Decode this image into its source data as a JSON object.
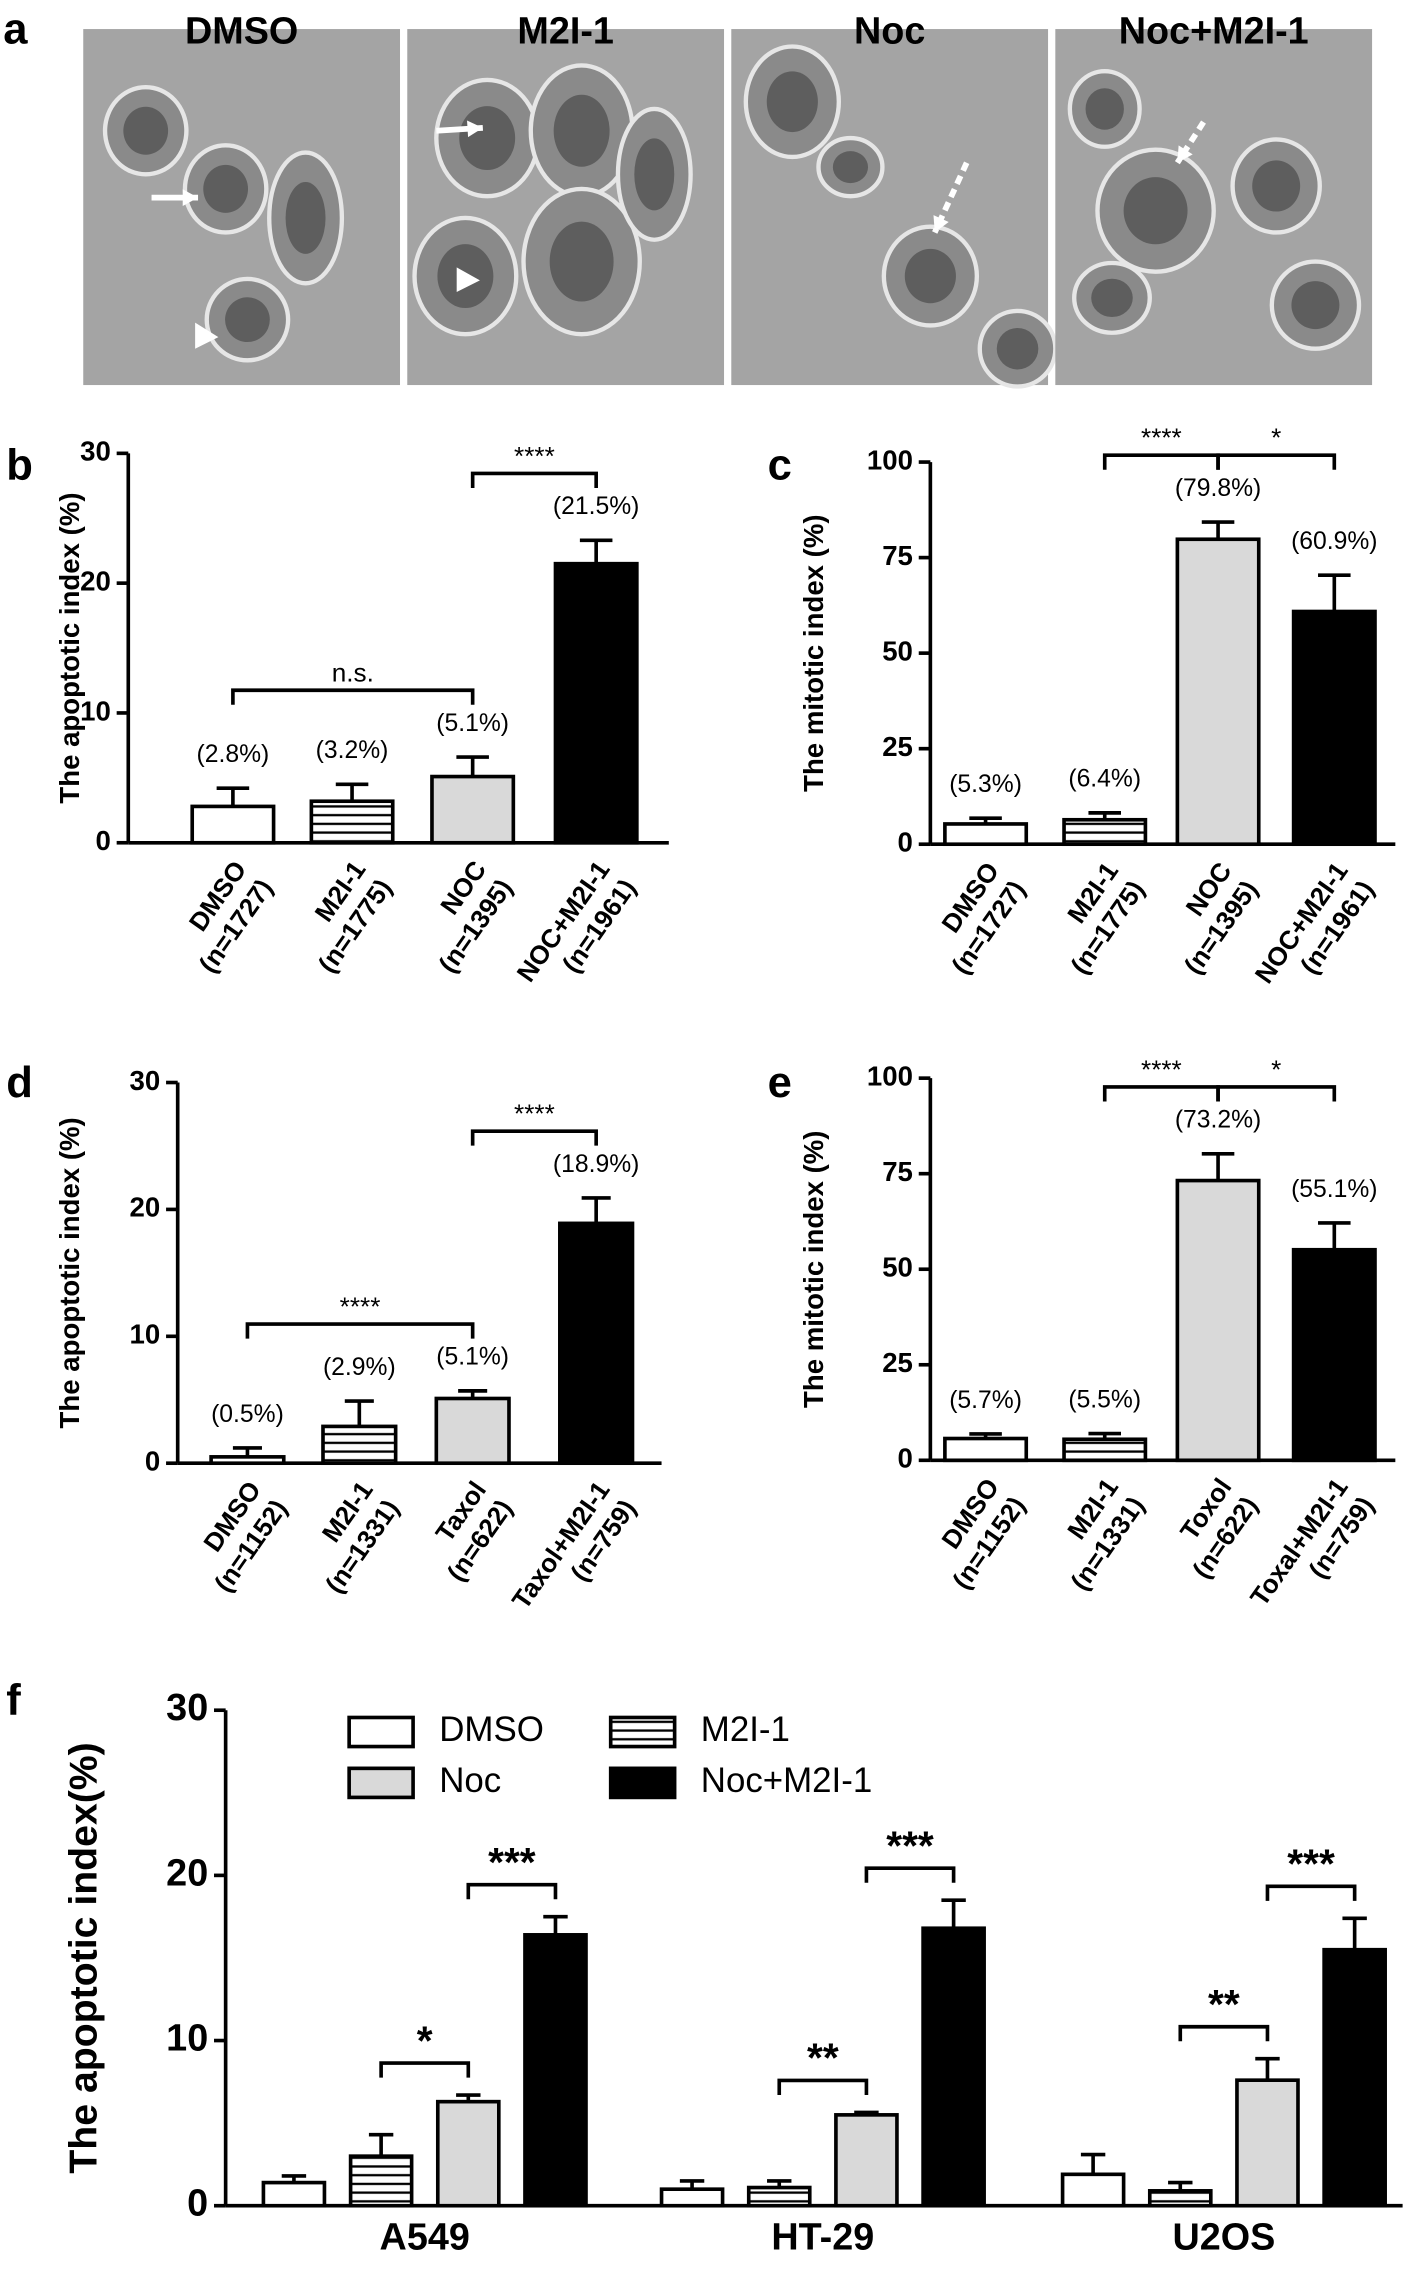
{
  "panel_a": {
    "label": "a",
    "titles": [
      "DMSO",
      "M2I-1",
      "Noc",
      "Noc+M2I-1"
    ]
  },
  "chart_data": [
    {
      "type": "bar",
      "panel": "b",
      "ylabel": "The apoptotic index (%)",
      "categories": [
        "DMSO",
        "M2I-1",
        "NOC",
        "NOC+M2I-1"
      ],
      "sample_sizes": [
        "(n=1727)",
        "(n=1775)",
        "(n=1395)",
        "(n=1961)"
      ],
      "values": [
        2.8,
        3.2,
        5.1,
        21.5
      ],
      "value_labels": [
        "(2.8%)",
        "(3.2%)",
        "(5.1%)",
        "(21.5%)"
      ],
      "errors": [
        1.4,
        1.3,
        1.5,
        1.8
      ],
      "colors": [
        "#ffffff",
        "#ffffff",
        "#d9d9d9",
        "#000000"
      ],
      "hatch": [
        false,
        true,
        false,
        false
      ],
      "ylim": [
        0,
        30
      ],
      "yticks": [
        0,
        10,
        20,
        30
      ],
      "annotations": [
        {
          "from": 0,
          "to": 2,
          "text": "n.s."
        },
        {
          "from": 2,
          "to": 3,
          "text": "****"
        }
      ]
    },
    {
      "type": "bar",
      "panel": "c",
      "ylabel": "The mitotic index (%)",
      "categories": [
        "DMSO",
        "M2I-1",
        "NOC",
        "NOC+M2I-1"
      ],
      "sample_sizes": [
        "(n=1727)",
        "(n=1775)",
        "(n=1395)",
        "(n=1961)"
      ],
      "values": [
        5.3,
        6.4,
        79.8,
        60.9
      ],
      "value_labels": [
        "(5.3%)",
        "(6.4%)",
        "(79.8%)",
        "(60.9%)"
      ],
      "errors": [
        1.5,
        1.8,
        4.5,
        9.5
      ],
      "colors": [
        "#ffffff",
        "#ffffff",
        "#d9d9d9",
        "#000000"
      ],
      "hatch": [
        false,
        true,
        false,
        false
      ],
      "ylim": [
        0,
        100
      ],
      "yticks": [
        0,
        25,
        50,
        75,
        100
      ],
      "annotations": [
        {
          "from": 1,
          "to": 2,
          "text": "****"
        },
        {
          "from": 2,
          "to": 3,
          "text": "*"
        }
      ]
    },
    {
      "type": "bar",
      "panel": "d",
      "ylabel": "The apoptotic index (%)",
      "categories": [
        "DMSO",
        "M2I-1",
        "Taxol",
        "Taxol+M2I-1"
      ],
      "sample_sizes": [
        "(n=1152)",
        "(n=1331)",
        "(n=622)",
        "(n=759)"
      ],
      "values": [
        0.5,
        2.9,
        5.1,
        18.9
      ],
      "value_labels": [
        "(0.5%)",
        "(2.9%)",
        "(5.1%)",
        "(18.9%)"
      ],
      "errors": [
        0.7,
        2.0,
        0.6,
        2.0
      ],
      "colors": [
        "#ffffff",
        "#ffffff",
        "#d9d9d9",
        "#000000"
      ],
      "hatch": [
        false,
        true,
        false,
        false
      ],
      "ylim": [
        0,
        30
      ],
      "yticks": [
        0,
        10,
        20,
        30
      ],
      "annotations": [
        {
          "from": 0,
          "to": 2,
          "text": "****"
        },
        {
          "from": 2,
          "to": 3,
          "text": "****"
        }
      ]
    },
    {
      "type": "bar",
      "panel": "e",
      "ylabel": "The mitotic index (%)",
      "categories": [
        "DMSO",
        "M2I-1",
        "Toxol",
        "Toxal+M2I-1"
      ],
      "sample_sizes": [
        "(n=1152)",
        "(n=1331)",
        "(n=622)",
        "(n=759)"
      ],
      "values": [
        5.7,
        5.5,
        73.2,
        55.1
      ],
      "value_labels": [
        "(5.7%)",
        "(5.5%)",
        "(73.2%)",
        "(55.1%)"
      ],
      "errors": [
        1.2,
        1.5,
        7.0,
        7.0
      ],
      "colors": [
        "#ffffff",
        "#ffffff",
        "#d9d9d9",
        "#000000"
      ],
      "hatch": [
        false,
        true,
        false,
        false
      ],
      "ylim": [
        0,
        100
      ],
      "yticks": [
        0,
        25,
        50,
        75,
        100
      ],
      "annotations": [
        {
          "from": 1,
          "to": 2,
          "text": "****"
        },
        {
          "from": 2,
          "to": 3,
          "text": "*"
        }
      ]
    },
    {
      "type": "grouped_bar",
      "panel": "f",
      "ylabel": "The apoptotic index(%)",
      "categories": [
        "A549",
        "HT-29",
        "U2OS"
      ],
      "series": [
        {
          "name": "DMSO",
          "color": "#ffffff",
          "hatch": false,
          "values": [
            1.4,
            1.0,
            1.9
          ],
          "errors": [
            0.4,
            0.5,
            1.2
          ]
        },
        {
          "name": "M2I-1",
          "color": "#ffffff",
          "hatch": true,
          "values": [
            3.0,
            1.1,
            0.9
          ],
          "errors": [
            1.3,
            0.4,
            0.5
          ]
        },
        {
          "name": "Noc",
          "color": "#d9d9d9",
          "hatch": false,
          "values": [
            6.3,
            5.5,
            7.6
          ],
          "errors": [
            0.4,
            0.15,
            1.3
          ]
        },
        {
          "name": "Noc+M2I-1",
          "color": "#000000",
          "hatch": false,
          "values": [
            16.4,
            16.8,
            15.5
          ],
          "errors": [
            1.1,
            1.7,
            1.9
          ]
        }
      ],
      "ylim": [
        0,
        30
      ],
      "yticks": [
        0,
        10,
        20,
        30
      ],
      "annotations": [
        {
          "category": 0,
          "from": 1,
          "to": 2,
          "text": "*"
        },
        {
          "category": 0,
          "from": 2,
          "to": 3,
          "text": "***"
        },
        {
          "category": 1,
          "from": 1,
          "to": 2,
          "text": "**"
        },
        {
          "category": 1,
          "from": 2,
          "to": 3,
          "text": "***"
        },
        {
          "category": 2,
          "from": 1,
          "to": 2,
          "text": "**"
        },
        {
          "category": 2,
          "from": 2,
          "to": 3,
          "text": "***"
        }
      ]
    }
  ]
}
